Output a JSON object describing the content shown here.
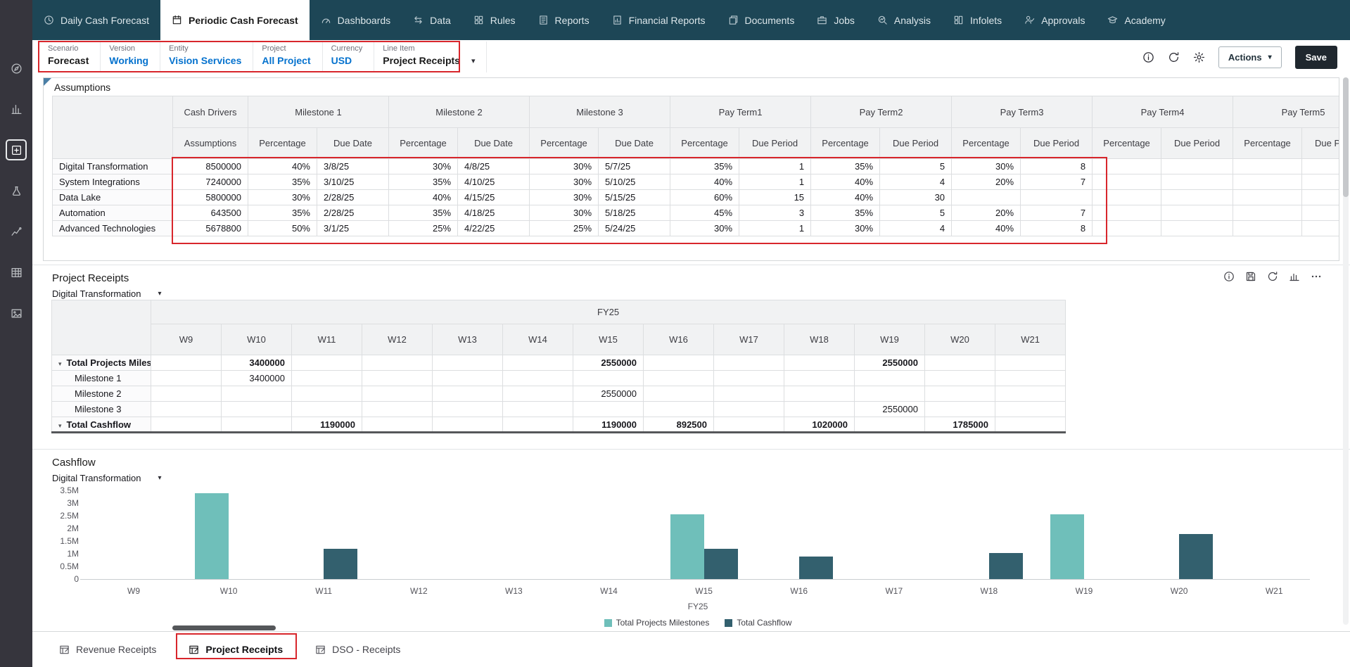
{
  "colors": {
    "nav_bg": "#1d4656",
    "sidebar_bg": "#36353d",
    "accent_blue": "#0572ce",
    "annotation_red": "#d8262c",
    "series_milestones": "#6fbfba",
    "series_cashflow": "#33606e",
    "save_button_bg": "#1f272e"
  },
  "top_nav": {
    "items": [
      {
        "label": "Daily Cash Forecast",
        "icon": "clock-icon",
        "active": false
      },
      {
        "label": "Periodic Cash Forecast",
        "icon": "calendar-icon",
        "active": true
      },
      {
        "label": "Dashboards",
        "icon": "gauge-icon",
        "active": false
      },
      {
        "label": "Data",
        "icon": "data-arrows-icon",
        "active": false
      },
      {
        "label": "Rules",
        "icon": "rules-grid-icon",
        "active": false
      },
      {
        "label": "Reports",
        "icon": "report-icon",
        "active": false
      },
      {
        "label": "Financial Reports",
        "icon": "financial-report-icon",
        "active": false
      },
      {
        "label": "Documents",
        "icon": "documents-icon",
        "active": false
      },
      {
        "label": "Jobs",
        "icon": "briefcase-icon",
        "active": false
      },
      {
        "label": "Analysis",
        "icon": "analysis-icon",
        "active": false
      },
      {
        "label": "Infolets",
        "icon": "infolets-icon",
        "active": false
      },
      {
        "label": "Approvals",
        "icon": "approvals-icon",
        "active": false
      },
      {
        "label": "Academy",
        "icon": "academy-icon",
        "active": false
      }
    ]
  },
  "sidebar": {
    "icons": [
      "journeys-icon",
      "library-icon",
      "forms-icon",
      "lab-icon",
      "insights-icon",
      "data-grid-icon",
      "snapshots-icon"
    ],
    "active_index": 2
  },
  "pov": {
    "fields": [
      {
        "label": "Scenario",
        "value": "Forecast",
        "style": "plain",
        "dropdown": false
      },
      {
        "label": "Version",
        "value": "Working",
        "style": "link",
        "dropdown": false
      },
      {
        "label": "Entity",
        "value": "Vision Services",
        "style": "link",
        "dropdown": false
      },
      {
        "label": "Project",
        "value": "All Project",
        "style": "link",
        "dropdown": false
      },
      {
        "label": "Currency",
        "value": "USD",
        "style": "link",
        "dropdown": false
      },
      {
        "label": "Line Item",
        "value": "Project Receipts",
        "style": "plain",
        "dropdown": true
      }
    ]
  },
  "toolbar": {
    "icons": [
      "info-icon",
      "refresh-icon",
      "gear-icon"
    ],
    "actions_label": "Actions",
    "save_label": "Save"
  },
  "assumptions": {
    "title": "Assumptions",
    "groups": [
      {
        "label": "Cash Drivers",
        "subcols": [
          "Assumptions"
        ]
      },
      {
        "label": "Milestone 1",
        "subcols": [
          "Percentage",
          "Due Date"
        ]
      },
      {
        "label": "Milestone 2",
        "subcols": [
          "Percentage",
          "Due Date"
        ]
      },
      {
        "label": "Milestone 3",
        "subcols": [
          "Percentage",
          "Due Date"
        ]
      },
      {
        "label": "Pay Term1",
        "subcols": [
          "Percentage",
          "Due Period"
        ]
      },
      {
        "label": "Pay Term2",
        "subcols": [
          "Percentage",
          "Due Period"
        ]
      },
      {
        "label": "Pay Term3",
        "subcols": [
          "Percentage",
          "Due Period"
        ]
      },
      {
        "label": "Pay Term4",
        "subcols": [
          "Percentage",
          "Due Period"
        ]
      },
      {
        "label": "Pay Term5",
        "subcols": [
          "Percentage",
          "Due Period"
        ]
      }
    ],
    "rows": [
      {
        "name": "Digital Transformation",
        "values": [
          "8500000",
          "40%",
          "3/8/25",
          "30%",
          "4/8/25",
          "30%",
          "5/7/25",
          "35%",
          "1",
          "35%",
          "5",
          "30%",
          "8",
          "",
          "",
          "",
          ""
        ]
      },
      {
        "name": "System Integrations",
        "values": [
          "7240000",
          "35%",
          "3/10/25",
          "35%",
          "4/10/25",
          "30%",
          "5/10/25",
          "40%",
          "1",
          "40%",
          "4",
          "20%",
          "7",
          "",
          "",
          "",
          ""
        ]
      },
      {
        "name": "Data Lake",
        "values": [
          "5800000",
          "30%",
          "2/28/25",
          "40%",
          "4/15/25",
          "30%",
          "5/15/25",
          "60%",
          "15",
          "40%",
          "30",
          "",
          "",
          "",
          "",
          "",
          ""
        ]
      },
      {
        "name": "Automation",
        "values": [
          "643500",
          "35%",
          "2/28/25",
          "35%",
          "4/18/25",
          "30%",
          "5/18/25",
          "45%",
          "3",
          "35%",
          "5",
          "20%",
          "7",
          "",
          "",
          "",
          ""
        ]
      },
      {
        "name": "Advanced Technologies",
        "values": [
          "5678800",
          "50%",
          "3/1/25",
          "25%",
          "4/22/25",
          "25%",
          "5/24/25",
          "30%",
          "1",
          "30%",
          "4",
          "40%",
          "8",
          "",
          "",
          "",
          ""
        ]
      }
    ]
  },
  "project_receipts": {
    "title": "Project Receipts",
    "filter": "Digital Transformation",
    "year_header": "FY25",
    "columns": [
      "W9",
      "W10",
      "W11",
      "W12",
      "W13",
      "W14",
      "W15",
      "W16",
      "W17",
      "W18",
      "W19",
      "W20",
      "W21"
    ],
    "rows": [
      {
        "name": "Total Projects Miles",
        "bold": true,
        "expandable": true,
        "underline": false,
        "values": {
          "W10": "3400000",
          "W15": "2550000",
          "W19": "2550000"
        }
      },
      {
        "name": "Milestone 1",
        "bold": false,
        "expandable": false,
        "underline": false,
        "values": {
          "W10": "3400000"
        }
      },
      {
        "name": "Milestone 2",
        "bold": false,
        "expandable": false,
        "underline": false,
        "values": {
          "W15": "2550000"
        }
      },
      {
        "name": "Milestone 3",
        "bold": false,
        "expandable": false,
        "underline": false,
        "values": {
          "W19": "2550000"
        }
      },
      {
        "name": "Total Cashflow",
        "bold": true,
        "expandable": true,
        "underline": true,
        "values": {
          "W11": "1190000",
          "W15": "1190000",
          "W16": "892500",
          "W18": "1020000",
          "W20": "1785000"
        }
      }
    ],
    "icons": [
      "info-icon",
      "save-icon",
      "refresh-icon",
      "chart-icon",
      "more-icon"
    ]
  },
  "cashflow": {
    "title": "Cashflow",
    "filter": "Digital Transformation"
  },
  "chart_data": {
    "type": "bar",
    "title": "Cashflow",
    "categories": [
      "W9",
      "W10",
      "W11",
      "W12",
      "W13",
      "W14",
      "W15",
      "W16",
      "W17",
      "W18",
      "W19",
      "W20",
      "W21"
    ],
    "series": [
      {
        "name": "Total Projects Milestones",
        "color": "#6fbfba",
        "values": [
          null,
          3400000,
          null,
          null,
          null,
          null,
          2550000,
          null,
          null,
          null,
          2550000,
          null,
          null
        ]
      },
      {
        "name": "Total Cashflow",
        "color": "#33606e",
        "values": [
          null,
          null,
          1190000,
          null,
          null,
          null,
          1190000,
          892500,
          null,
          1020000,
          null,
          1785000,
          null
        ]
      }
    ],
    "xlabel": "FY25",
    "ylabel": "",
    "ylim": [
      0,
      3500000
    ],
    "yticks": [
      "0",
      "0.5M",
      "1M",
      "1.5M",
      "2M",
      "2.5M",
      "3M",
      "3.5M"
    ],
    "legend_position": "bottom",
    "grid": false
  },
  "bottom_tabs": {
    "tabs": [
      {
        "label": "Revenue Receipts",
        "active": false
      },
      {
        "label": "Project Receipts",
        "active": true
      },
      {
        "label": "DSO - Receipts",
        "active": false
      }
    ]
  }
}
